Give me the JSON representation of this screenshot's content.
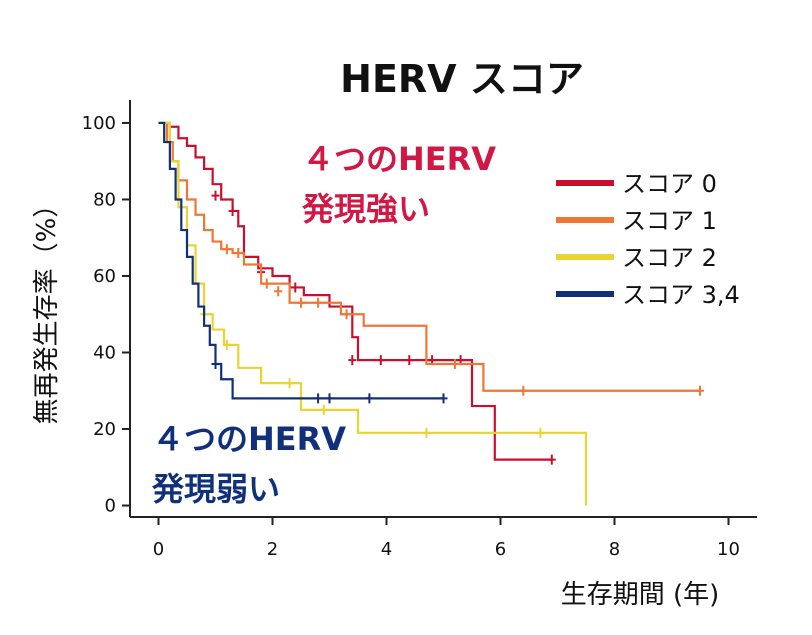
{
  "chart_data": {
    "type": "line",
    "step": true,
    "title": "HERV スコア",
    "xlabel": "生存期間 (年)",
    "ylabel": "無再発生存率（%）",
    "xlim": [
      -0.5,
      10.5
    ],
    "ylim": [
      -3,
      106
    ],
    "xticks": [
      0,
      2,
      4,
      6,
      8,
      10
    ],
    "yticks": [
      0,
      20,
      40,
      60,
      80,
      100
    ],
    "legend_position": "right",
    "annotations": [
      {
        "line1": "４つのHERV",
        "line2": "発現強い",
        "color": "#d11844"
      },
      {
        "line1": "４つのHERV",
        "line2": "発現弱い",
        "color": "#10307a"
      }
    ],
    "series": [
      {
        "name": "スコア 0",
        "color": "#c8102e",
        "x": [
          0,
          0.2,
          0.35,
          0.5,
          0.65,
          0.8,
          0.95,
          1.1,
          1.3,
          1.4,
          1.5,
          1.75,
          2.0,
          2.3,
          2.55,
          3.0,
          3.4,
          3.5,
          5.5,
          5.9,
          6.9
        ],
        "y": [
          100,
          99,
          96,
          94,
          91,
          88,
          84,
          80,
          77,
          73,
          65,
          62,
          60,
          57,
          55,
          52,
          44,
          38,
          26,
          12,
          12
        ],
        "censored": [
          [
            1.0,
            81
          ],
          [
            1.3,
            77
          ],
          [
            1.8,
            61
          ],
          [
            2.4,
            57
          ],
          [
            3.4,
            38
          ],
          [
            3.9,
            38
          ],
          [
            4.4,
            38
          ],
          [
            4.8,
            38
          ],
          [
            5.3,
            38
          ],
          [
            6.9,
            12
          ]
        ]
      },
      {
        "name": "スコア 1",
        "color": "#ef7733",
        "x": [
          0,
          0.15,
          0.25,
          0.35,
          0.5,
          0.65,
          0.8,
          0.95,
          1.1,
          1.3,
          1.5,
          1.8,
          2.3,
          3.2,
          3.6,
          4.7,
          5.7,
          9.5
        ],
        "y": [
          100,
          95,
          90,
          85,
          80,
          76,
          72,
          69,
          67,
          66,
          63,
          58,
          53,
          50,
          47,
          37,
          30,
          30
        ],
        "censored": [
          [
            1.2,
            67
          ],
          [
            1.4,
            66
          ],
          [
            1.9,
            58
          ],
          [
            2.1,
            56
          ],
          [
            2.5,
            53
          ],
          [
            2.8,
            53
          ],
          [
            3.3,
            50
          ],
          [
            5.2,
            37
          ],
          [
            6.4,
            30
          ],
          [
            9.5,
            30
          ]
        ]
      },
      {
        "name": "スコア 2",
        "color": "#e8d432",
        "x": [
          0,
          0.2,
          0.35,
          0.5,
          0.65,
          0.8,
          0.95,
          1.15,
          1.4,
          1.8,
          2.5,
          3.5,
          7.5
        ],
        "y": [
          100,
          90,
          78,
          68,
          58,
          50,
          46,
          42,
          36,
          32,
          25,
          19,
          0
        ],
        "censored": [
          [
            0.8,
            50
          ],
          [
            1.2,
            42
          ],
          [
            2.3,
            32
          ],
          [
            2.9,
            25
          ],
          [
            4.7,
            19
          ],
          [
            6.7,
            19
          ]
        ]
      },
      {
        "name": "スコア 3,4",
        "color": "#10307a",
        "x": [
          0,
          0.1,
          0.2,
          0.3,
          0.4,
          0.5,
          0.6,
          0.7,
          0.8,
          0.9,
          1.0,
          1.1,
          1.3,
          5.0
        ],
        "y": [
          100,
          95,
          88,
          80,
          72,
          65,
          58,
          52,
          47,
          42,
          37,
          33,
          28,
          28
        ],
        "censored": [
          [
            1.0,
            37
          ],
          [
            2.8,
            28
          ],
          [
            3.0,
            28
          ],
          [
            3.7,
            28
          ],
          [
            5.0,
            28
          ]
        ]
      }
    ]
  }
}
